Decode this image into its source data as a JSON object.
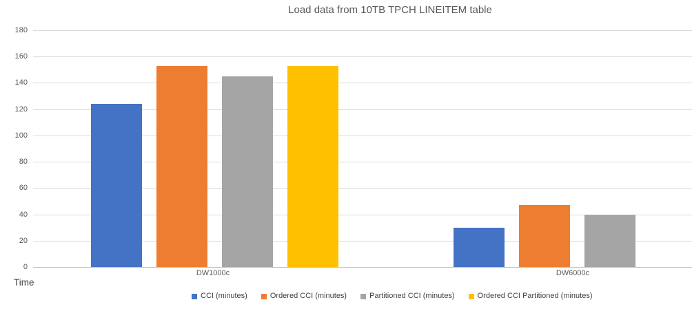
{
  "chart_data": {
    "type": "bar",
    "title": "Load data from 10TB TPCH LINEITEM table",
    "ylabel": "Time",
    "categories": [
      "DW1000c",
      "DW6000c"
    ],
    "series": [
      {
        "name": "CCI (minutes)",
        "color": "#4472C4",
        "values": [
          124,
          30
        ]
      },
      {
        "name": "Ordered CCI (minutes)",
        "color": "#ED7D31",
        "values": [
          153,
          47
        ]
      },
      {
        "name": "Partitioned CCI (minutes)",
        "color": "#A5A5A5",
        "values": [
          145,
          40
        ]
      },
      {
        "name": "Ordered CCI Partitioned (minutes)",
        "color": "#FFC000",
        "values": [
          153,
          0
        ]
      }
    ],
    "ylim": [
      0,
      180
    ],
    "yticks": [
      0,
      20,
      40,
      60,
      80,
      100,
      120,
      140,
      160,
      180
    ],
    "grid": "horizontal",
    "legend_position": "bottom",
    "gridline_color": "#D9D9D9",
    "axis_line_color": "#BFBFBF",
    "text_color": "#595959"
  }
}
